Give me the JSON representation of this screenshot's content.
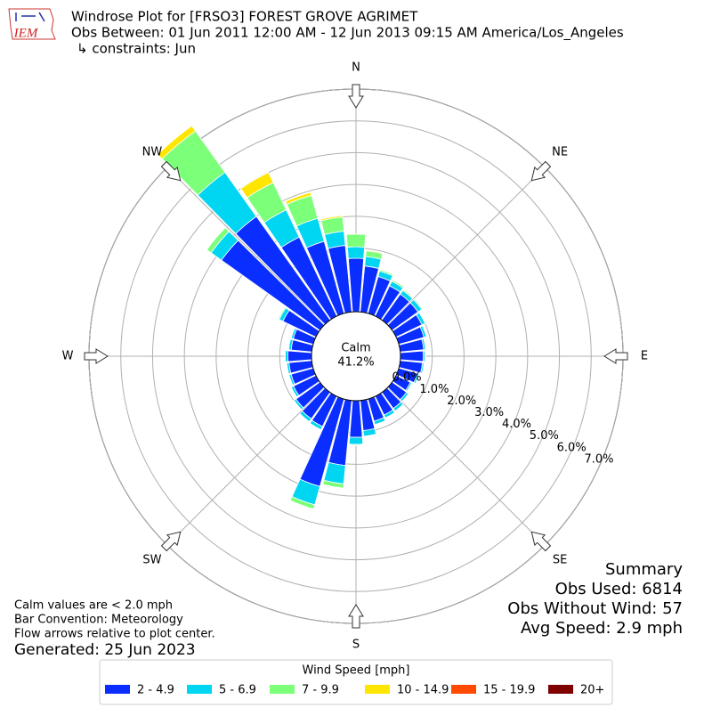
{
  "chart_data": {
    "type": "windrose",
    "logo_text": "IEM",
    "title": "Windrose Plot for [FRSO3] FOREST GROVE AGRIMET",
    "subtitle": "Obs Between: 01 Jun 2011 12:00 AM - 12 Jun 2013 09:15 AM America/Los_Angeles",
    "constraints": "↳ constraints: Jun",
    "compass_labels": [
      "N",
      "NE",
      "E",
      "SE",
      "S",
      "SW",
      "W",
      "NW"
    ],
    "directions_deg": [
      0,
      10,
      20,
      30,
      40,
      50,
      60,
      70,
      80,
      90,
      100,
      110,
      120,
      130,
      140,
      150,
      160,
      170,
      180,
      190,
      200,
      210,
      220,
      230,
      240,
      250,
      260,
      270,
      280,
      290,
      300,
      310,
      320,
      330,
      340,
      350
    ],
    "calm": {
      "label": "Calm",
      "value": 41.2,
      "value_label": "41.2%"
    },
    "ylim": [
      0,
      7
    ],
    "yticks": [
      {
        "value": 0,
        "label": "0.0%"
      },
      {
        "value": 1,
        "label": "1.0%"
      },
      {
        "value": 2,
        "label": "2.0%"
      },
      {
        "value": 3,
        "label": "3.0%"
      },
      {
        "value": 4,
        "label": "4.0%"
      },
      {
        "value": 5,
        "label": "5.0%"
      },
      {
        "value": 6,
        "label": "6.0%"
      },
      {
        "value": 7,
        "label": "7.0%"
      }
    ],
    "grid": true,
    "legend_title": "Wind Speed [mph]",
    "series": [
      {
        "name": "2 - 4.9",
        "color": "#0a2eff",
        "values": [
          1.68,
          1.45,
          1.2,
          1.05,
          1.0,
          1.0,
          0.9,
          0.82,
          0.74,
          0.72,
          0.7,
          0.6,
          0.5,
          0.55,
          0.62,
          0.65,
          0.72,
          0.95,
          1.15,
          2.05,
          2.85,
          1.05,
          1.02,
          0.92,
          0.78,
          0.72,
          0.72,
          0.75,
          0.65,
          0.65,
          1.15,
          3.8,
          4.0,
          2.75,
          2.35,
          2.1
        ]
      },
      {
        "name": "5 - 6.9",
        "color": "#00d5f2",
        "values": [
          0.36,
          0.3,
          0.18,
          0.16,
          0.14,
          0.14,
          0.11,
          0.08,
          0.06,
          0.05,
          0.05,
          0.06,
          0.05,
          0.08,
          0.1,
          0.1,
          0.11,
          0.18,
          0.22,
          0.58,
          0.6,
          0.11,
          0.11,
          0.08,
          0.08,
          0.07,
          0.07,
          0.08,
          0.08,
          0.07,
          0.13,
          0.4,
          1.7,
          0.95,
          0.75,
          0.45
        ]
      },
      {
        "name": "7 - 9.9",
        "color": "#7cff79",
        "values": [
          0.4,
          0.18,
          0.05,
          0.05,
          0.04,
          0.04,
          0.03,
          0.02,
          0.01,
          0.01,
          0.01,
          0.01,
          0.01,
          0.01,
          0.01,
          0.01,
          0.01,
          0.02,
          0.03,
          0.14,
          0.14,
          0.02,
          0.02,
          0.02,
          0.01,
          0.01,
          0.01,
          0.01,
          0.01,
          0.01,
          0.04,
          0.17,
          1.6,
          0.95,
          0.75,
          0.45
        ]
      },
      {
        "name": "10 - 14.9",
        "color": "#ffe600",
        "values": [
          0,
          0.03,
          0,
          0,
          0,
          0,
          0,
          0,
          0,
          0,
          0,
          0,
          0,
          0,
          0,
          0,
          0,
          0,
          0,
          0,
          0,
          0,
          0,
          0,
          0,
          0,
          0,
          0,
          0,
          0,
          0,
          0,
          0.2,
          0.35,
          0.1,
          0.05
        ]
      },
      {
        "name": "15 - 19.9",
        "color": "#ff4a00",
        "values": [
          0,
          0,
          0,
          0,
          0,
          0,
          0,
          0,
          0,
          0,
          0,
          0,
          0,
          0,
          0,
          0,
          0,
          0,
          0,
          0,
          0,
          0,
          0,
          0,
          0,
          0,
          0,
          0,
          0,
          0,
          0,
          0,
          0,
          0,
          0,
          0
        ]
      },
      {
        "name": "20+",
        "color": "#7f0000",
        "values": [
          0,
          0,
          0,
          0,
          0,
          0,
          0,
          0,
          0,
          0,
          0,
          0,
          0,
          0,
          0,
          0,
          0,
          0,
          0,
          0,
          0,
          0,
          0,
          0,
          0,
          0,
          0,
          0,
          0,
          0,
          0,
          0,
          0,
          0,
          0,
          0
        ]
      }
    ],
    "summary": {
      "heading": "Summary",
      "lines": [
        "Obs Used: 6814",
        "Obs Without Wind: 57",
        "Avg Speed: 2.9 mph"
      ]
    },
    "notes": [
      "Calm values are < 2.0 mph",
      "Bar Convention: Meteorology",
      "Flow arrows relative to plot center."
    ],
    "generated": "Generated: 25 Jun 2023"
  }
}
